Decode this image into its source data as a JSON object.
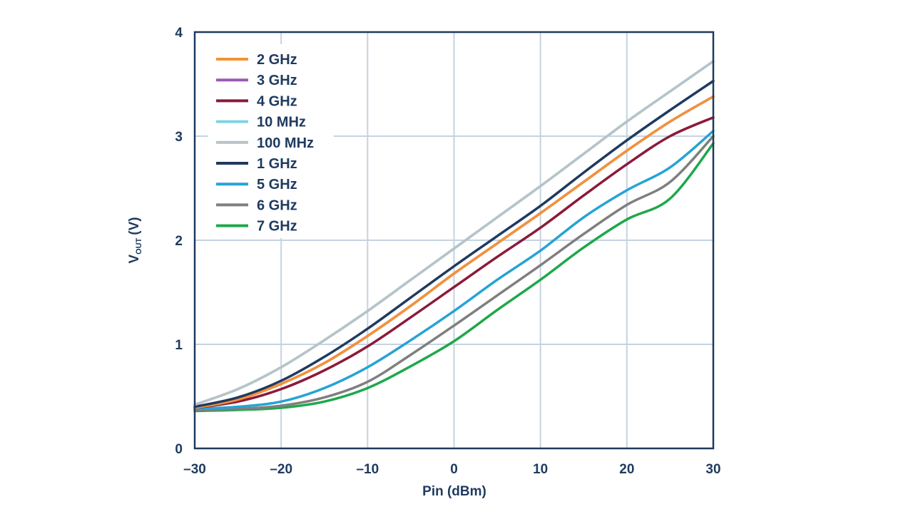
{
  "chart_data": {
    "type": "line",
    "title": "",
    "xlabel": "Pin (dBm)",
    "ylabel_main": "V",
    "ylabel_sub": "OUT",
    "ylabel_unit": "(V)",
    "xlim": [
      -30,
      30
    ],
    "ylim": [
      0,
      4
    ],
    "xticks": [
      -30,
      -20,
      -10,
      0,
      10,
      20,
      30
    ],
    "xtick_labels": [
      "–30",
      "–20",
      "–10",
      "0",
      "10",
      "20",
      "30"
    ],
    "yticks": [
      0,
      1,
      2,
      3,
      4
    ],
    "ytick_labels": [
      "0",
      "1",
      "2",
      "3",
      "4"
    ],
    "grid": true,
    "legend_position": "top-left",
    "x": [
      -30,
      -25,
      -20,
      -15,
      -10,
      -5,
      0,
      5,
      10,
      15,
      20,
      25,
      30
    ],
    "series": [
      {
        "name": "2 GHz",
        "color": "#f39237",
        "values": [
          0.39,
          0.47,
          0.62,
          0.82,
          1.08,
          1.37,
          1.68,
          1.97,
          2.26,
          2.56,
          2.86,
          3.14,
          3.38
        ]
      },
      {
        "name": "3 GHz",
        "color": "#9b59b6",
        "values": [
          0.39,
          0.47,
          0.62,
          0.82,
          1.08,
          1.37,
          1.68,
          1.97,
          2.26,
          2.56,
          2.86,
          3.14,
          3.38
        ]
      },
      {
        "name": "4 GHz",
        "color": "#8b1a3a",
        "values": [
          0.39,
          0.45,
          0.57,
          0.75,
          0.98,
          1.26,
          1.55,
          1.84,
          2.12,
          2.43,
          2.73,
          3.0,
          3.18
        ]
      },
      {
        "name": "10 MHz",
        "color": "#7fd3e3",
        "values": [
          0.42,
          0.57,
          0.78,
          1.04,
          1.32,
          1.62,
          1.92,
          2.22,
          2.52,
          2.83,
          3.14,
          3.43,
          3.72
        ]
      },
      {
        "name": "100 MHz",
        "color": "#b7c3c8",
        "values": [
          0.42,
          0.57,
          0.78,
          1.04,
          1.32,
          1.62,
          1.92,
          2.22,
          2.52,
          2.83,
          3.14,
          3.43,
          3.72
        ]
      },
      {
        "name": "1 GHz",
        "color": "#1f3a5f",
        "values": [
          0.4,
          0.49,
          0.65,
          0.88,
          1.15,
          1.45,
          1.75,
          2.04,
          2.33,
          2.65,
          2.96,
          3.25,
          3.53
        ]
      },
      {
        "name": "5 GHz",
        "color": "#26a3d5",
        "values": [
          0.38,
          0.4,
          0.45,
          0.58,
          0.78,
          1.04,
          1.32,
          1.62,
          1.9,
          2.22,
          2.48,
          2.7,
          3.05
        ]
      },
      {
        "name": "6 GHz",
        "color": "#7f7f7f",
        "values": [
          0.37,
          0.38,
          0.41,
          0.49,
          0.64,
          0.9,
          1.18,
          1.47,
          1.76,
          2.06,
          2.34,
          2.56,
          3.0
        ]
      },
      {
        "name": "7 GHz",
        "color": "#1ea84a",
        "values": [
          0.36,
          0.37,
          0.39,
          0.45,
          0.58,
          0.79,
          1.03,
          1.33,
          1.62,
          1.93,
          2.2,
          2.4,
          2.93
        ]
      }
    ]
  }
}
